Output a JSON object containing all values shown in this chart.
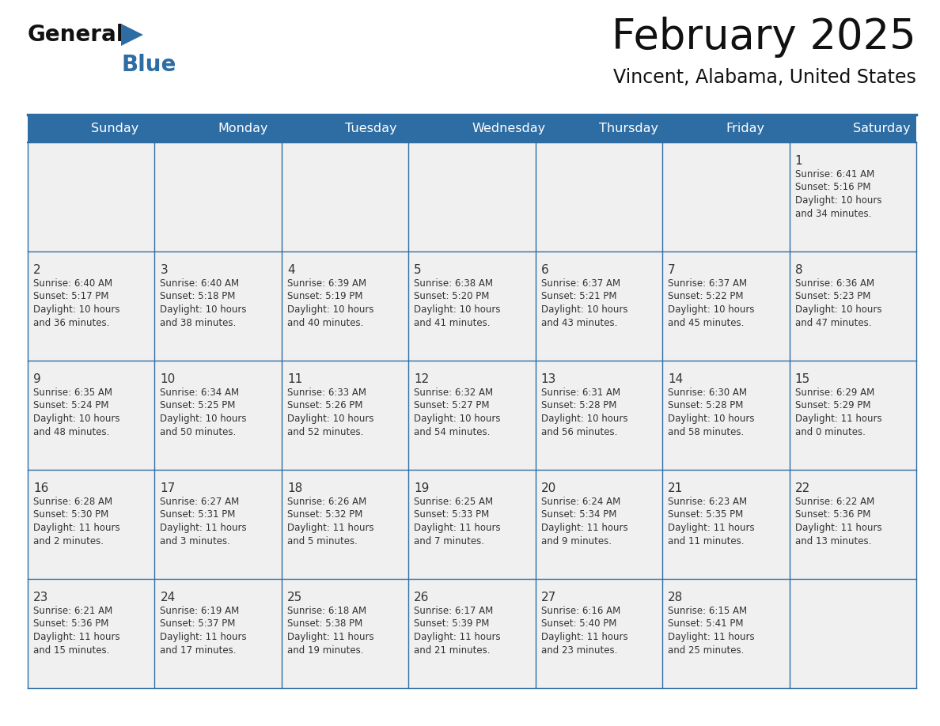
{
  "title": "February 2025",
  "subtitle": "Vincent, Alabama, United States",
  "header_bg_color": "#2E6DA4",
  "header_text_color": "#FFFFFF",
  "cell_bg_color": "#F0F0F0",
  "border_color": "#2E6DA4",
  "text_color": "#333333",
  "day_headers": [
    "Sunday",
    "Monday",
    "Tuesday",
    "Wednesday",
    "Thursday",
    "Friday",
    "Saturday"
  ],
  "logo_text1": "General",
  "logo_text2": "Blue",
  "logo_color1": "#111111",
  "logo_color2": "#2E6DA4",
  "triangle_color": "#2E6DA4",
  "calendar": [
    [
      {
        "day": "",
        "info": ""
      },
      {
        "day": "",
        "info": ""
      },
      {
        "day": "",
        "info": ""
      },
      {
        "day": "",
        "info": ""
      },
      {
        "day": "",
        "info": ""
      },
      {
        "day": "",
        "info": ""
      },
      {
        "day": "1",
        "info": "Sunrise: 6:41 AM\nSunset: 5:16 PM\nDaylight: 10 hours\nand 34 minutes."
      }
    ],
    [
      {
        "day": "2",
        "info": "Sunrise: 6:40 AM\nSunset: 5:17 PM\nDaylight: 10 hours\nand 36 minutes."
      },
      {
        "day": "3",
        "info": "Sunrise: 6:40 AM\nSunset: 5:18 PM\nDaylight: 10 hours\nand 38 minutes."
      },
      {
        "day": "4",
        "info": "Sunrise: 6:39 AM\nSunset: 5:19 PM\nDaylight: 10 hours\nand 40 minutes."
      },
      {
        "day": "5",
        "info": "Sunrise: 6:38 AM\nSunset: 5:20 PM\nDaylight: 10 hours\nand 41 minutes."
      },
      {
        "day": "6",
        "info": "Sunrise: 6:37 AM\nSunset: 5:21 PM\nDaylight: 10 hours\nand 43 minutes."
      },
      {
        "day": "7",
        "info": "Sunrise: 6:37 AM\nSunset: 5:22 PM\nDaylight: 10 hours\nand 45 minutes."
      },
      {
        "day": "8",
        "info": "Sunrise: 6:36 AM\nSunset: 5:23 PM\nDaylight: 10 hours\nand 47 minutes."
      }
    ],
    [
      {
        "day": "9",
        "info": "Sunrise: 6:35 AM\nSunset: 5:24 PM\nDaylight: 10 hours\nand 48 minutes."
      },
      {
        "day": "10",
        "info": "Sunrise: 6:34 AM\nSunset: 5:25 PM\nDaylight: 10 hours\nand 50 minutes."
      },
      {
        "day": "11",
        "info": "Sunrise: 6:33 AM\nSunset: 5:26 PM\nDaylight: 10 hours\nand 52 minutes."
      },
      {
        "day": "12",
        "info": "Sunrise: 6:32 AM\nSunset: 5:27 PM\nDaylight: 10 hours\nand 54 minutes."
      },
      {
        "day": "13",
        "info": "Sunrise: 6:31 AM\nSunset: 5:28 PM\nDaylight: 10 hours\nand 56 minutes."
      },
      {
        "day": "14",
        "info": "Sunrise: 6:30 AM\nSunset: 5:28 PM\nDaylight: 10 hours\nand 58 minutes."
      },
      {
        "day": "15",
        "info": "Sunrise: 6:29 AM\nSunset: 5:29 PM\nDaylight: 11 hours\nand 0 minutes."
      }
    ],
    [
      {
        "day": "16",
        "info": "Sunrise: 6:28 AM\nSunset: 5:30 PM\nDaylight: 11 hours\nand 2 minutes."
      },
      {
        "day": "17",
        "info": "Sunrise: 6:27 AM\nSunset: 5:31 PM\nDaylight: 11 hours\nand 3 minutes."
      },
      {
        "day": "18",
        "info": "Sunrise: 6:26 AM\nSunset: 5:32 PM\nDaylight: 11 hours\nand 5 minutes."
      },
      {
        "day": "19",
        "info": "Sunrise: 6:25 AM\nSunset: 5:33 PM\nDaylight: 11 hours\nand 7 minutes."
      },
      {
        "day": "20",
        "info": "Sunrise: 6:24 AM\nSunset: 5:34 PM\nDaylight: 11 hours\nand 9 minutes."
      },
      {
        "day": "21",
        "info": "Sunrise: 6:23 AM\nSunset: 5:35 PM\nDaylight: 11 hours\nand 11 minutes."
      },
      {
        "day": "22",
        "info": "Sunrise: 6:22 AM\nSunset: 5:36 PM\nDaylight: 11 hours\nand 13 minutes."
      }
    ],
    [
      {
        "day": "23",
        "info": "Sunrise: 6:21 AM\nSunset: 5:36 PM\nDaylight: 11 hours\nand 15 minutes."
      },
      {
        "day": "24",
        "info": "Sunrise: 6:19 AM\nSunset: 5:37 PM\nDaylight: 11 hours\nand 17 minutes."
      },
      {
        "day": "25",
        "info": "Sunrise: 6:18 AM\nSunset: 5:38 PM\nDaylight: 11 hours\nand 19 minutes."
      },
      {
        "day": "26",
        "info": "Sunrise: 6:17 AM\nSunset: 5:39 PM\nDaylight: 11 hours\nand 21 minutes."
      },
      {
        "day": "27",
        "info": "Sunrise: 6:16 AM\nSunset: 5:40 PM\nDaylight: 11 hours\nand 23 minutes."
      },
      {
        "day": "28",
        "info": "Sunrise: 6:15 AM\nSunset: 5:41 PM\nDaylight: 11 hours\nand 25 minutes."
      },
      {
        "day": "",
        "info": ""
      }
    ]
  ]
}
